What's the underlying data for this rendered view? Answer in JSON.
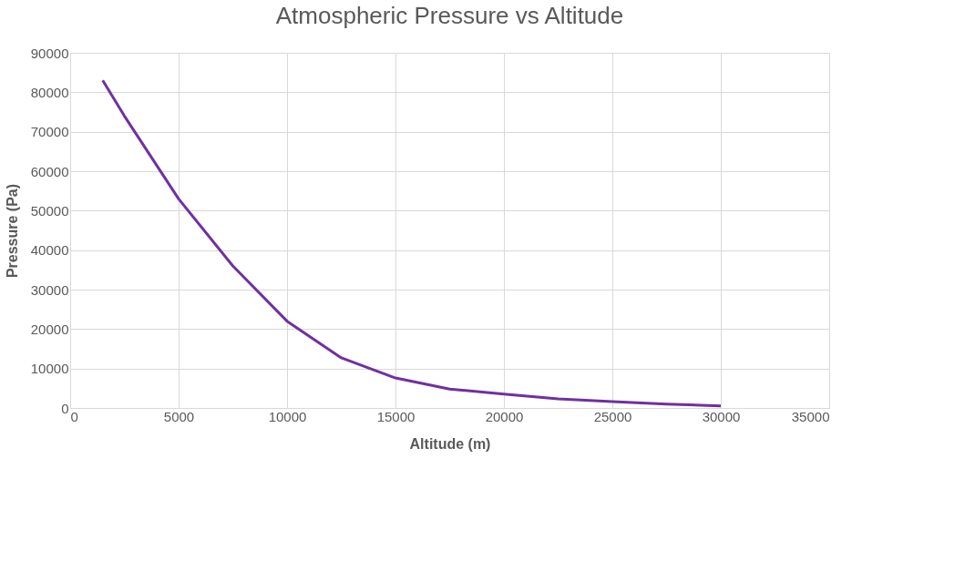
{
  "chart_data": {
    "type": "line",
    "title": "Atmospheric Pressure vs Altitude",
    "xlabel": "Altitude (m)",
    "ylabel": "Pressure (Pa)",
    "x": [
      1500,
      2500,
      5000,
      7500,
      10000,
      12500,
      15000,
      17500,
      20000,
      22500,
      25000,
      27500,
      30000
    ],
    "series": [
      {
        "color": "#7030a0",
        "values": [
          83000,
          74000,
          53000,
          36000,
          22000,
          12700,
          7600,
          4800,
          3500,
          2300,
          1600,
          1000,
          500
        ]
      }
    ],
    "xlim": [
      0,
      35000
    ],
    "xticks": [
      0,
      5000,
      10000,
      15000,
      20000,
      25000,
      30000,
      35000
    ],
    "ylim": [
      0,
      90000
    ],
    "yticks": [
      0,
      10000,
      20000,
      30000,
      40000,
      50000,
      60000,
      70000,
      80000,
      90000
    ],
    "grid": true,
    "legend": false,
    "marker": "none",
    "line_style": "solid"
  }
}
